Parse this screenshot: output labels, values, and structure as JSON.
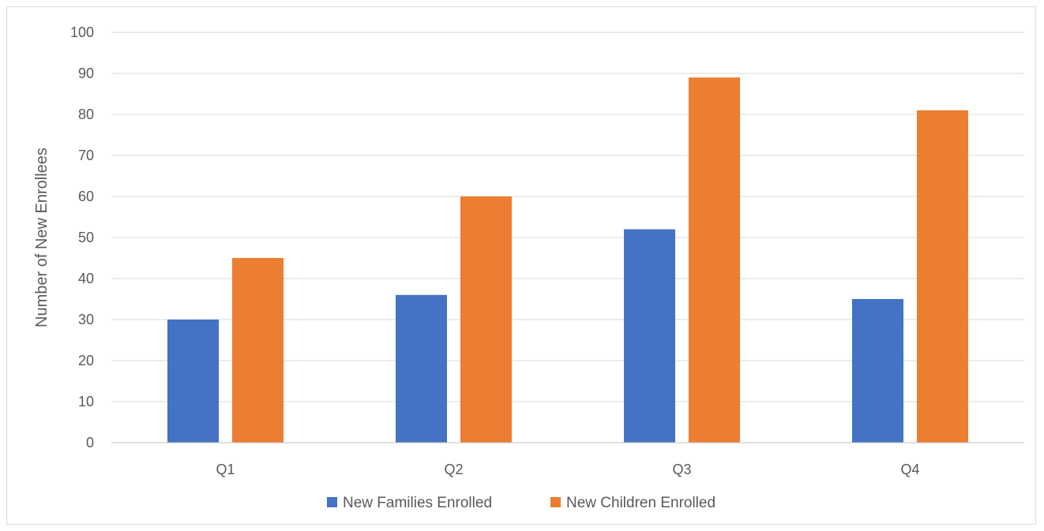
{
  "chart_data": {
    "type": "bar",
    "title": "",
    "xlabel": "",
    "ylabel": "Number of New Enrollees",
    "categories": [
      "Q1",
      "Q2",
      "Q3",
      "Q4"
    ],
    "series": [
      {
        "name": "New Families Enrolled",
        "color": "#4472C4",
        "values": [
          30,
          36,
          52,
          35
        ]
      },
      {
        "name": "New Children Enrolled",
        "color": "#ED7D31",
        "values": [
          45,
          60,
          89,
          81
        ]
      }
    ],
    "ylim": [
      0,
      100
    ],
    "yticks": [
      0,
      10,
      20,
      30,
      40,
      50,
      60,
      70,
      80,
      90,
      100
    ],
    "grid": true,
    "legend_position": "bottom"
  }
}
